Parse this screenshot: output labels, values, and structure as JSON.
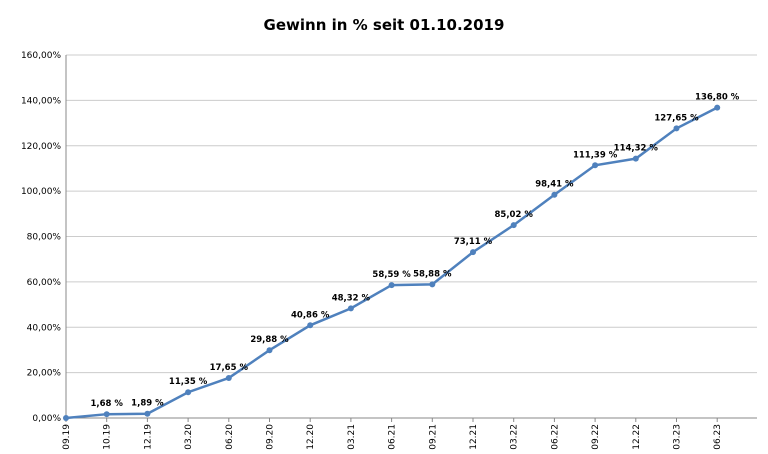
{
  "chart_data": {
    "type": "line",
    "title": "Gewinn in % seit 01.10.2019",
    "categories": [
      "09.19",
      "10.19",
      "12.19",
      "03.20",
      "06.20",
      "09.20",
      "12.20",
      "03.21",
      "06.21",
      "09.21",
      "12.21",
      "03.22",
      "06.22",
      "09.22",
      "12.22",
      "03.23",
      "06.23"
    ],
    "values": [
      0,
      1.68,
      1.89,
      11.35,
      17.65,
      29.88,
      40.86,
      48.32,
      58.59,
      58.88,
      73.11,
      85.02,
      98.41,
      111.39,
      114.32,
      127.65,
      136.8
    ],
    "value_labels": [
      null,
      "1,68 %",
      "1,89 %",
      "11,35 %",
      "17,65 %",
      "29,88 %",
      "40,86 %",
      "48,32 %",
      "58,59 %",
      "58,88 %",
      "73,11 %",
      "85,02 %",
      "98,41 %",
      "111,39 %",
      "114,32 %",
      "127,65 %",
      "136,80 %"
    ],
    "color": "#4f81bd",
    "ylim": [
      0,
      160
    ],
    "yticks": [
      {
        "value": 0,
        "label": "0,00%"
      },
      {
        "value": 20,
        "label": "20,00%"
      },
      {
        "value": 40,
        "label": "40,00%"
      },
      {
        "value": 60,
        "label": "60,00%"
      },
      {
        "value": 80,
        "label": "80,00%"
      },
      {
        "value": 100,
        "label": "100,00%"
      },
      {
        "value": 120,
        "label": "120,00%"
      },
      {
        "value": 140,
        "label": "140,00%"
      },
      {
        "value": 160,
        "label": "160,00%"
      }
    ],
    "grid": true
  }
}
